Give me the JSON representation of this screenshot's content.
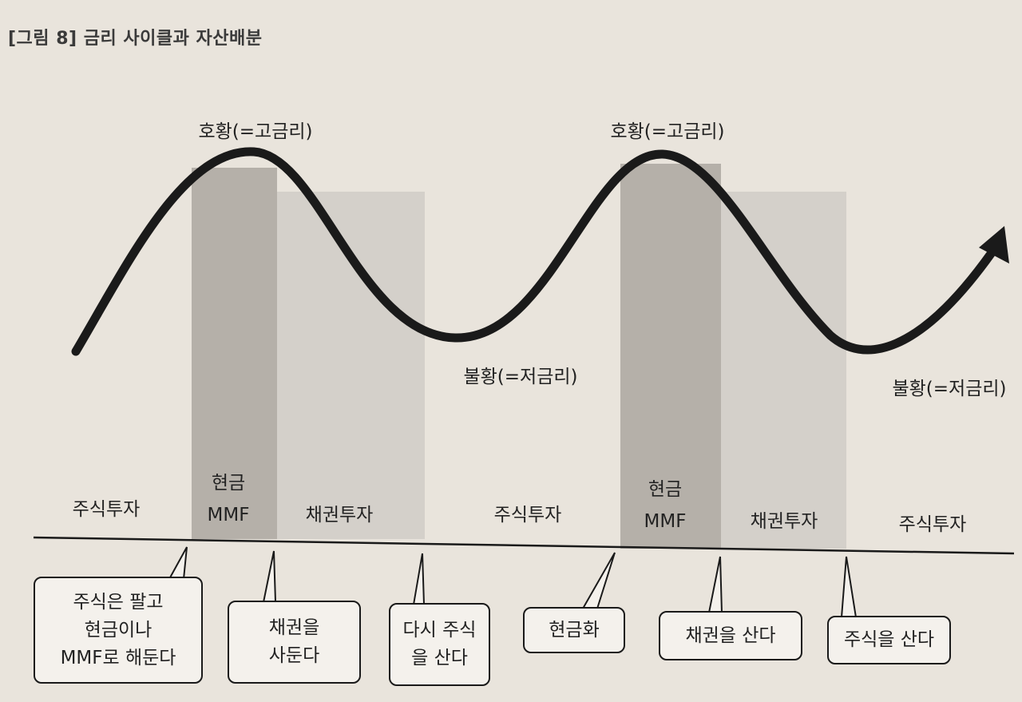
{
  "title": "[그림 8] 금리 사이클과 자산배분",
  "peaks": [
    "호황(=고금리)",
    "호황(=고금리)"
  ],
  "troughs": [
    "불황(=저금리)",
    "불황(=저금리)"
  ],
  "phases": {
    "stock1": "주식투자",
    "cash1_line1": "현금",
    "cash1_line2": "MMF",
    "bond1": "채권투자",
    "stock2": "주식투자",
    "cash2_line1": "현금",
    "cash2_line2": "MMF",
    "bond2": "채권투자",
    "stock3": "주식투자"
  },
  "callouts": [
    {
      "lines": [
        "주식은 팔고",
        "현금이나",
        "MMF로 해둔다"
      ]
    },
    {
      "lines": [
        "채권을",
        "사둔다"
      ]
    },
    {
      "lines": [
        "다시 주식",
        "을 산다"
      ]
    },
    {
      "lines": [
        "현금화"
      ]
    },
    {
      "lines": [
        "채권을 산다"
      ]
    },
    {
      "lines": [
        "주식을 산다"
      ]
    }
  ],
  "colors": {
    "curve": "#1a1a1a",
    "cash_band": "#b5b0a9",
    "bond_band": "#d4d0ca",
    "background": "#e9e4dc"
  }
}
